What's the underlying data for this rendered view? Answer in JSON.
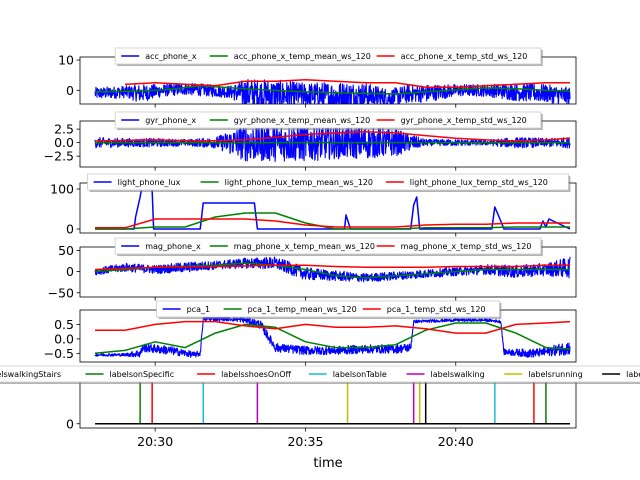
{
  "figure": {
    "xlabel": "time",
    "x_ticks": [
      "20:30",
      "20:35",
      "20:40"
    ],
    "x_tick_minutes": [
      30,
      35,
      40
    ],
    "x_range_minutes": [
      27.5,
      44.0
    ]
  },
  "chart_data": [
    {
      "type": "line",
      "title": "",
      "ylim": [
        -4.5,
        11
      ],
      "y_ticks": [
        0,
        10
      ],
      "y_tick_labels": [
        "0",
        "10"
      ],
      "legend": {
        "placement": "top-center",
        "ncol": 3
      },
      "series": [
        {
          "name": "acc_phone_x",
          "color": "#0000ff",
          "kind": "noisy",
          "x": [
            28.0,
            29.0,
            29.5,
            30.3,
            31.0,
            32.5,
            33.0,
            34.0,
            35.0,
            36.0,
            37.0,
            37.8,
            38.5,
            39.0,
            40.0,
            41.0,
            42.0,
            43.0,
            43.8
          ],
          "y": [
            -1,
            -0.5,
            -1,
            0,
            0.5,
            -0.5,
            -1,
            -1.5,
            -1.5,
            -2,
            -1.5,
            -2.5,
            -1,
            -1,
            0,
            0,
            -0.5,
            -1,
            -2
          ],
          "amp": [
            2,
            2,
            3,
            2,
            2,
            2,
            5,
            5,
            4,
            5,
            4,
            3,
            3,
            3,
            2,
            2,
            3,
            3,
            3
          ]
        },
        {
          "name": "acc_phone_x_temp_mean_ws_120",
          "color": "#008000",
          "kind": "smooth",
          "x": [
            28.0,
            29.5,
            30.5,
            31.5,
            33.0,
            34.0,
            35.0,
            36.0,
            37.0,
            38.0,
            39.0,
            40.0,
            41.0,
            42.0,
            43.0,
            43.8
          ],
          "y": [
            -0.5,
            -0.2,
            0.3,
            1.5,
            0.5,
            0,
            -0.5,
            -0.8,
            -1,
            -1.2,
            -0.5,
            0.2,
            0.8,
            0.5,
            0,
            -0.2
          ]
        },
        {
          "name": "acc_phone_x_temp_std_ws_120",
          "color": "#ff0000",
          "kind": "smooth",
          "x": [
            29.0,
            30.0,
            31.0,
            32.0,
            33.0,
            34.0,
            35.0,
            36.0,
            37.0,
            38.0,
            39.0,
            40.0,
            41.0,
            42.0,
            43.0,
            43.8
          ],
          "y": [
            2,
            2.5,
            2,
            1.5,
            3,
            3,
            3.5,
            3,
            2.5,
            2.5,
            1,
            1,
            1.5,
            2,
            2.5,
            2.5
          ]
        }
      ]
    },
    {
      "type": "line",
      "title": "",
      "ylim": [
        -4.5,
        4
      ],
      "y_ticks": [
        2.5,
        0,
        -2.5
      ],
      "y_tick_labels": [
        "2.5",
        "0.0",
        "−2.5"
      ],
      "legend": {
        "placement": "top-center",
        "ncol": 3
      },
      "series": [
        {
          "name": "gyr_phone_x",
          "color": "#0000ff",
          "kind": "noisy",
          "x": [
            28.0,
            29.0,
            30.0,
            31.0,
            32.0,
            33.0,
            34.0,
            35.0,
            36.0,
            37.0,
            38.0,
            39.0,
            40.0,
            41.0,
            42.0,
            43.0,
            43.8
          ],
          "y": [
            0,
            0,
            0,
            0,
            0,
            0,
            0,
            0,
            0,
            0,
            0,
            0,
            0,
            0,
            0,
            0,
            0
          ],
          "amp": [
            1,
            0.8,
            0.8,
            0.6,
            1,
            3.5,
            3.5,
            3.5,
            3,
            3,
            2.5,
            0.6,
            0.6,
            0.5,
            1,
            0.8,
            1
          ]
        },
        {
          "name": "gyr_phone_x_temp_mean_ws_120",
          "color": "#008000",
          "kind": "smooth",
          "x": [
            28.0,
            43.8
          ],
          "y": [
            0,
            0
          ]
        },
        {
          "name": "gyr_phone_x_temp_std_ws_120",
          "color": "#ff0000",
          "kind": "smooth",
          "x": [
            28.0,
            30.0,
            31.5,
            33.0,
            34.0,
            35.0,
            36.0,
            37.0,
            38.0,
            39.0,
            40.0,
            41.0,
            42.0,
            43.0,
            43.8
          ],
          "y": [
            0.3,
            0.5,
            0.3,
            0.5,
            1,
            1.5,
            1.8,
            2,
            1.8,
            1.3,
            0.8,
            0.5,
            0.3,
            0.5,
            0.8
          ]
        }
      ]
    },
    {
      "type": "line",
      "title": "",
      "ylim": [
        -10,
        115
      ],
      "y_ticks": [
        0,
        100
      ],
      "y_tick_labels": [
        "0",
        "100"
      ],
      "legend": {
        "placement": "top-center",
        "ncol": 3
      },
      "series": [
        {
          "name": "light_phone_lux",
          "color": "#0000ff",
          "kind": "polyline",
          "x": [
            28.0,
            29.3,
            29.35,
            29.5,
            29.55,
            29.9,
            29.95,
            31.5,
            31.6,
            33.3,
            33.4,
            35.0,
            36.3,
            36.35,
            36.5,
            38.5,
            38.6,
            38.7,
            38.8,
            41.2,
            41.3,
            41.5,
            41.6,
            42.8,
            42.9,
            43.0,
            43.1,
            43.8
          ],
          "y": [
            0,
            0,
            30,
            80,
            100,
            100,
            0,
            0,
            65,
            65,
            0,
            0,
            0,
            35,
            0,
            0,
            60,
            80,
            0,
            0,
            55,
            20,
            0,
            0,
            20,
            5,
            25,
            0
          ]
        },
        {
          "name": "light_phone_lux_temp_mean_ws_120",
          "color": "#008000",
          "kind": "smooth",
          "x": [
            28.0,
            29.0,
            30.0,
            31.0,
            32.0,
            33.0,
            34.0,
            35.0,
            36.0,
            37.0,
            38.0,
            39.0,
            40.0,
            41.0,
            42.0,
            43.0,
            43.8
          ],
          "y": [
            0,
            0,
            5,
            5,
            30,
            40,
            40,
            15,
            0,
            0,
            0,
            3,
            3,
            3,
            5,
            5,
            5
          ]
        },
        {
          "name": "light_phone_lux_temp_std_ws_120",
          "color": "#ff0000",
          "kind": "smooth",
          "x": [
            28.0,
            29.0,
            30.0,
            31.0,
            32.0,
            33.0,
            34.0,
            35.0,
            36.0,
            37.0,
            38.0,
            39.0,
            40.0,
            41.0,
            42.0,
            43.0,
            43.8
          ],
          "y": [
            3,
            3,
            25,
            25,
            25,
            25,
            20,
            10,
            5,
            5,
            5,
            10,
            12,
            12,
            15,
            15,
            15
          ]
        }
      ]
    },
    {
      "type": "line",
      "title": "",
      "ylim": [
        -60,
        58
      ],
      "y_ticks": [
        50,
        0,
        -50
      ],
      "y_tick_labels": [
        "50",
        "0",
        "−50"
      ],
      "legend": {
        "placement": "top-center",
        "ncol": 3
      },
      "series": [
        {
          "name": "mag_phone_x",
          "color": "#0000ff",
          "kind": "noisy",
          "x": [
            28.0,
            29.0,
            30.0,
            31.0,
            32.0,
            33.0,
            34.0,
            35.0,
            36.0,
            37.0,
            38.0,
            39.0,
            40.0,
            41.0,
            42.0,
            43.0,
            43.8
          ],
          "y": [
            0,
            10,
            5,
            10,
            15,
            20,
            20,
            -5,
            -10,
            -15,
            -10,
            -5,
            0,
            5,
            0,
            5,
            10
          ],
          "amp": [
            8,
            10,
            10,
            12,
            10,
            12,
            15,
            15,
            12,
            10,
            10,
            10,
            10,
            12,
            15,
            15,
            25
          ]
        },
        {
          "name": "mag_phone_x_temp_mean_ws_120",
          "color": "#008000",
          "kind": "smooth",
          "x": [
            28.0,
            30.0,
            32.0,
            33.0,
            34.0,
            35.0,
            36.0,
            37.0,
            38.0,
            39.0,
            40.0,
            41.0,
            42.0,
            43.0,
            43.8
          ],
          "y": [
            0,
            10,
            15,
            20,
            15,
            5,
            -10,
            -15,
            -10,
            -5,
            0,
            5,
            5,
            5,
            5
          ]
        },
        {
          "name": "mag_phone_x_temp_std_ws_120",
          "color": "#ff0000",
          "kind": "smooth",
          "x": [
            28.0,
            30.0,
            32.0,
            34.0,
            35.0,
            36.0,
            37.0,
            38.0,
            39.0,
            40.0,
            41.0,
            42.0,
            43.0,
            43.8
          ],
          "y": [
            5,
            10,
            12,
            15,
            15,
            12,
            10,
            10,
            10,
            12,
            12,
            12,
            15,
            15
          ]
        }
      ]
    },
    {
      "type": "line",
      "title": "",
      "ylim": [
        -0.8,
        1.0
      ],
      "y_ticks": [
        0.5,
        0,
        -0.5
      ],
      "y_tick_labels": [
        "0.5",
        "0.0",
        "−0.5"
      ],
      "legend": {
        "placement": "top-center",
        "ncol": 3
      },
      "series": [
        {
          "name": "pca_1",
          "color": "#0000ff",
          "kind": "noisy",
          "x": [
            28.0,
            29.0,
            29.5,
            29.6,
            30.5,
            31.3,
            31.5,
            31.6,
            32.5,
            33.0,
            33.5,
            34.0,
            35.0,
            36.0,
            37.0,
            38.0,
            38.5,
            38.6,
            40.0,
            41.0,
            41.5,
            41.6,
            42.5,
            43.0,
            43.8
          ],
          "y": [
            -0.55,
            -0.55,
            -0.5,
            -0.3,
            -0.4,
            -0.55,
            -0.5,
            0.7,
            0.7,
            0.65,
            0.5,
            -0.3,
            -0.4,
            -0.4,
            -0.35,
            -0.35,
            -0.3,
            0.6,
            0.65,
            0.65,
            0.6,
            -0.45,
            -0.5,
            -0.45,
            -0.3
          ],
          "amp": [
            0.05,
            0.05,
            0.15,
            0.15,
            0.15,
            0.1,
            0.1,
            0.08,
            0.08,
            0.1,
            0.15,
            0.15,
            0.15,
            0.15,
            0.15,
            0.15,
            0.15,
            0.05,
            0.05,
            0.05,
            0.05,
            0.1,
            0.15,
            0.15,
            0.25
          ]
        },
        {
          "name": "pca_1_temp_mean_ws_120",
          "color": "#008000",
          "kind": "smooth",
          "x": [
            28.0,
            29.0,
            30.0,
            31.0,
            32.0,
            33.0,
            34.0,
            35.0,
            36.0,
            37.0,
            38.0,
            39.0,
            40.0,
            41.0,
            42.0,
            43.0,
            43.8
          ],
          "y": [
            -0.5,
            -0.4,
            -0.1,
            -0.3,
            0.2,
            0.5,
            0.4,
            -0.1,
            -0.3,
            -0.3,
            -0.2,
            0.3,
            0.55,
            0.55,
            0.2,
            -0.3,
            -0.35
          ]
        },
        {
          "name": "pca_1_temp_std_ws_120",
          "color": "#ff0000",
          "kind": "smooth",
          "x": [
            28.0,
            29.0,
            30.0,
            31.0,
            32.0,
            33.0,
            34.0,
            35.0,
            36.0,
            37.0,
            38.0,
            39.0,
            40.0,
            41.0,
            42.0,
            43.0,
            43.8
          ],
          "y": [
            0.3,
            0.3,
            0.5,
            0.6,
            0.6,
            0.45,
            0.35,
            0.5,
            0.4,
            0.4,
            0.45,
            0.35,
            0.2,
            0.2,
            0.5,
            0.55,
            0.6
          ]
        }
      ]
    },
    {
      "type": "event",
      "title": "",
      "ylim": [
        -0.1,
        1.15
      ],
      "y_ticks": [
        0
      ],
      "y_tick_labels": [
        "0"
      ],
      "legend": {
        "placement": "top-center",
        "ncol": 7
      },
      "series": [
        {
          "name": "labelswalkingStairs",
          "color": "#0000ff",
          "events": []
        },
        {
          "name": "labelsonSpecific",
          "color": "#008000",
          "events": [
            29.5,
            43.0
          ]
        },
        {
          "name": "labelsshoesOnOff",
          "color": "#ff0000",
          "events": [
            29.9,
            42.6
          ]
        },
        {
          "name": "labelsonTable",
          "color": "#17becf",
          "events": [
            31.6,
            41.3
          ]
        },
        {
          "name": "labelswalking",
          "color": "#bf00bf",
          "events": [
            33.4,
            38.6
          ]
        },
        {
          "name": "labelsrunning",
          "color": "#bfbf00",
          "events": [
            36.4,
            38.8
          ]
        },
        {
          "name": "labelscycling",
          "color": "#000000",
          "events": [
            39.0
          ]
        }
      ]
    }
  ]
}
